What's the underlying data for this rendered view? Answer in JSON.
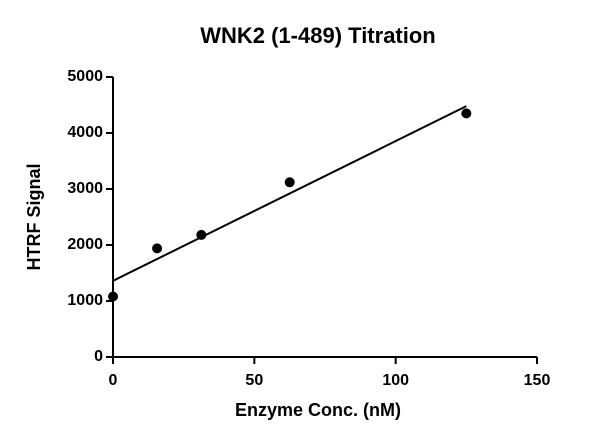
{
  "chart_data": {
    "type": "scatter",
    "title": "WNK2 (1-489) Titration",
    "x_label": "Enzyme Conc. (nM)",
    "y_label": "HTRF Signal",
    "series": [
      {
        "color": "#000000",
        "style": "points",
        "x": [
          0,
          15.6,
          31.25,
          62.5,
          125
        ],
        "values": [
          1080,
          1940,
          2180,
          3120,
          4350
        ]
      },
      {
        "color": "#000000",
        "style": "line",
        "x": [
          0,
          125
        ],
        "values": [
          1360,
          4480
        ]
      }
    ],
    "xlim": [
      0,
      150
    ],
    "xticks": [
      0,
      50,
      100,
      150
    ],
    "ylim": [
      0,
      5000
    ],
    "yticks": [
      0,
      1000,
      2000,
      3000,
      4000,
      5000
    ],
    "grid": false
  }
}
